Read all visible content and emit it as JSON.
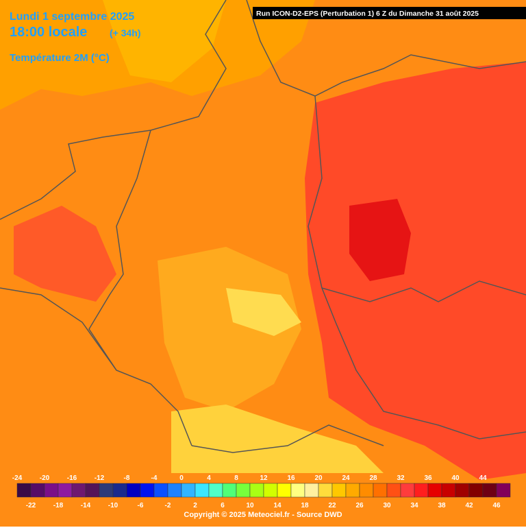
{
  "header": {
    "date": "Lundi 1 septembre 2025",
    "time": "18:00 locale",
    "offset": "(+ 34h)",
    "parameter": "Température 2M (°C)",
    "run": "Run ICON-D2-EPS (Perturbation 1) 6 Z du Dimanche 31 août 2025"
  },
  "legend": {
    "values": [
      -24,
      -22,
      -20,
      -18,
      -16,
      -14,
      -12,
      -10,
      -8,
      -6,
      -4,
      -2,
      0,
      2,
      4,
      6,
      8,
      10,
      12,
      14,
      16,
      18,
      20,
      22,
      24,
      26,
      28,
      30,
      32,
      34,
      36,
      38,
      40,
      42,
      44,
      46
    ],
    "colors": [
      "#3a0a46",
      "#560c66",
      "#7a0f88",
      "#8e1aa0",
      "#6e1870",
      "#541458",
      "#2c3a78",
      "#1a2a8c",
      "#0000c0",
      "#0014f0",
      "#0a50ff",
      "#1e82ff",
      "#32b4ff",
      "#3ce6ff",
      "#50ffc8",
      "#50ff78",
      "#78ff3c",
      "#aaff14",
      "#d2ff00",
      "#ffff00",
      "#ffff82",
      "#fff0a0",
      "#ffdc3c",
      "#ffc800",
      "#ffaa00",
      "#ff8c00",
      "#ff7000",
      "#ff5014",
      "#ff3c3c",
      "#ff1e1e",
      "#e60000",
      "#c80000",
      "#a00000",
      "#820000",
      "#6e0014",
      "#82005a"
    ]
  },
  "footer": {
    "copyright": "Copyright © 2025 Meteociel.fr - Source DWD"
  }
}
